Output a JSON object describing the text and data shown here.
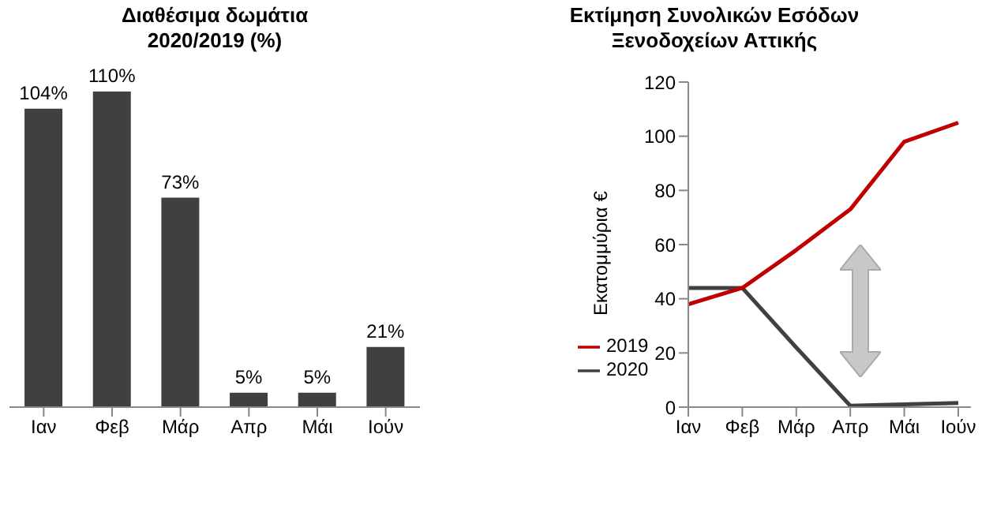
{
  "chart_data": [
    {
      "type": "bar",
      "title": "Διαθέσιμα δωμάτια\n2020/2019 (%)",
      "categories": [
        "Ιαν",
        "Φεβ",
        "Μάρ",
        "Απρ",
        "Μάι",
        "Ιούν"
      ],
      "values": [
        104,
        110,
        73,
        5,
        5,
        21
      ],
      "value_labels": [
        "104%",
        "110%",
        "73%",
        "5%",
        "5%",
        "21%"
      ],
      "color": "#404040"
    },
    {
      "type": "line",
      "title": "Εκτίμηση Συνολικών Εσόδων\nΞενοδοχείων Αττικής",
      "ylabel": "Εκατομμύρια €",
      "categories": [
        "Ιαν",
        "Φεβ",
        "Μάρ",
        "Απρ",
        "Μάι",
        "Ιούν"
      ],
      "series": [
        {
          "name": "2020",
          "color": "#404040",
          "values": [
            44,
            44,
            22,
            0.5,
            1,
            1.5
          ]
        },
        {
          "name": "2019",
          "color": "#c00000",
          "values": [
            38,
            44,
            58,
            73,
            98,
            105
          ]
        }
      ],
      "ylim": [
        0,
        120
      ],
      "yticks": [
        0,
        20,
        40,
        60,
        80,
        100,
        120
      ],
      "legend": "bottom left",
      "marker": "none",
      "line_style": "solid"
    }
  ]
}
